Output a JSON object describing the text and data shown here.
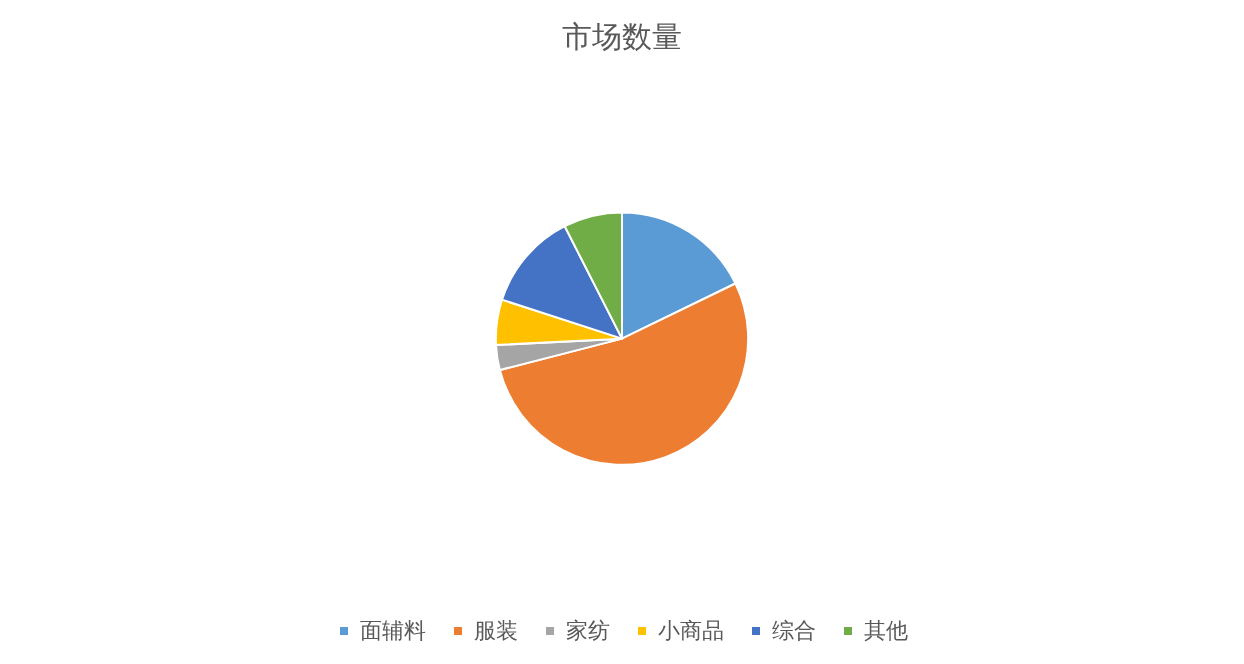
{
  "chart_data": {
    "type": "pie",
    "title": "市场数量",
    "categories": [
      "面辅料",
      "服装",
      "家纺",
      "小商品",
      "综合",
      "其他"
    ],
    "values": [
      17.8,
      53.2,
      3.2,
      5.8,
      12.5,
      7.5
    ],
    "colors": [
      "#5b9bd5",
      "#ed7d31",
      "#a5a5a5",
      "#ffc000",
      "#4472c4",
      "#70ad47"
    ],
    "legend": "bottom"
  }
}
